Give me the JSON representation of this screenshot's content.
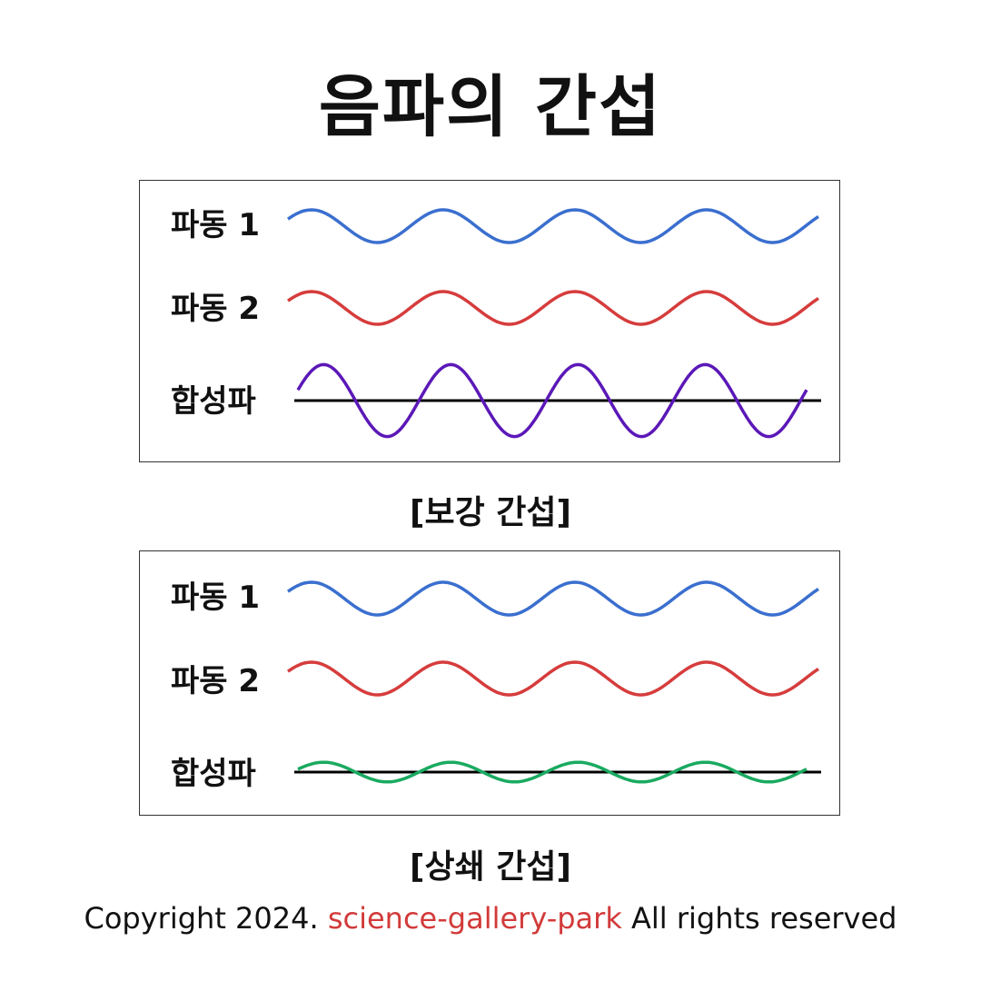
{
  "title": "음파의 간섭",
  "colors": {
    "wave1": "#3a6fcf",
    "wave2": "#d63c3c",
    "sum_constructive": "#5b18b8",
    "sum_destructive": "#1aaa60",
    "baseline": "#000000",
    "brand": "#d23a3a"
  },
  "panels": [
    {
      "caption": "[보강 간섭]",
      "labels": {
        "wave1": "파동 1",
        "wave2": "파동 2",
        "sum": "합성파"
      },
      "wave1": {
        "amplitude": 1,
        "phase": 0
      },
      "wave2": {
        "amplitude": 1,
        "phase": 0
      },
      "sum": {
        "amplitude": 2.2,
        "phase": 0
      }
    },
    {
      "caption": "[상쇄 간섭]",
      "labels": {
        "wave1": "파동 1",
        "wave2": "파동 2",
        "sum": "합성파"
      },
      "wave1": {
        "amplitude": 1,
        "phase": 0
      },
      "wave2": {
        "amplitude": 1,
        "phase": 0
      },
      "sum": {
        "amplitude": 0.6,
        "phase": 0
      }
    }
  ],
  "footer": {
    "prefix": "Copyright 2024.",
    "brand": "science-gallery-park",
    "suffix": "All rights reserved"
  }
}
